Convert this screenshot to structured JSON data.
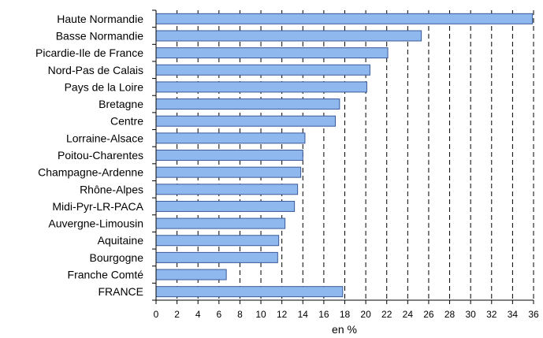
{
  "chart_data": {
    "type": "bar",
    "orientation": "horizontal",
    "categories": [
      "Haute Normandie",
      "Basse Normandie",
      "Picardie-Ile de France",
      "Nord-Pas de Calais",
      "Pays de la Loire",
      "Bretagne",
      "Centre",
      "Lorraine-Alsace",
      "Poitou-Charentes",
      "Champagne-Ardenne",
      "Rhône-Alpes",
      "Midi-Pyr-LR-PACA",
      "Auvergne-Limousin",
      "Aquitaine",
      "Bourgogne",
      "Franche Comté",
      "FRANCE"
    ],
    "values": [
      35.9,
      25.3,
      22.1,
      20.4,
      20.1,
      17.5,
      17.1,
      14.2,
      14.0,
      13.8,
      13.5,
      13.2,
      12.3,
      11.7,
      11.6,
      6.7,
      17.8
    ],
    "xlabel": "en %",
    "xlim": [
      0,
      36
    ],
    "xticks": [
      0,
      2,
      4,
      6,
      8,
      10,
      12,
      14,
      16,
      18,
      20,
      22,
      24,
      26,
      28,
      30,
      32,
      34,
      36
    ],
    "grid": "vertical-dashed",
    "colors": {
      "bar_fill": "#8fb8ee",
      "bar_stroke": "#3a5a9a",
      "axis": "#000000"
    }
  }
}
